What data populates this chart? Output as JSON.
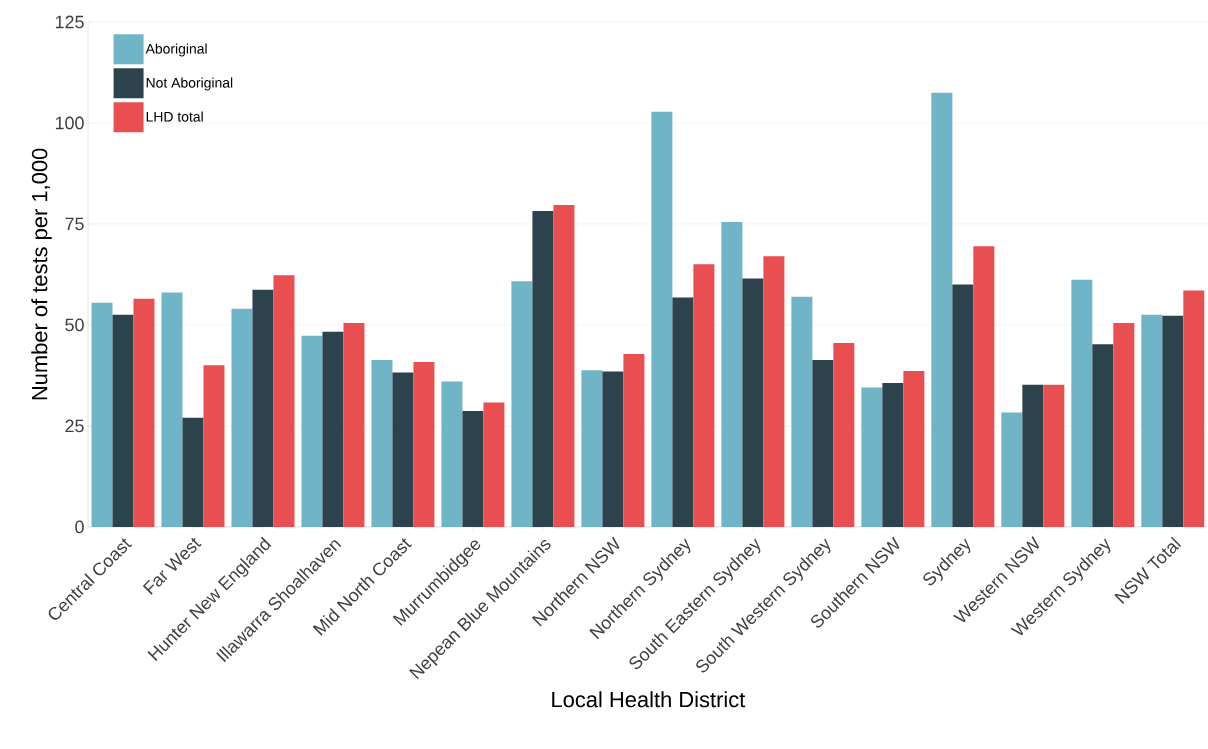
{
  "chart_data": {
    "type": "bar",
    "xlabel": "Local Health District",
    "ylabel": "Number of tests per 1,000",
    "categories": [
      "Central Coast",
      "Far West",
      "Hunter New England",
      "Illawarra Shoalhaven",
      "Mid North Coast",
      "Murrumbidgee",
      "Nepean Blue Mountains",
      "Northern NSW",
      "Northern Sydney",
      "South Eastern Sydney",
      "South Western Sydney",
      "Southern NSW",
      "Sydney",
      "Western NSW",
      "Western Sydney",
      "NSW Total"
    ],
    "series": [
      {
        "name": "Aboriginal",
        "color": "#70b4c7",
        "values": [
          55.5,
          58,
          54,
          47.3,
          41.3,
          36,
          60.8,
          38.8,
          102.8,
          75.5,
          57,
          34.5,
          107.5,
          28.3,
          61.2,
          52.5
        ]
      },
      {
        "name": "Not Aboriginal",
        "color": "#2c434e",
        "values": [
          52.5,
          27,
          58.7,
          48.3,
          38.2,
          28.7,
          78.2,
          38.5,
          56.8,
          61.5,
          41.3,
          35.6,
          60,
          35.2,
          45.2,
          52.3
        ]
      },
      {
        "name": "LHD total",
        "color": "#e94f50",
        "values": [
          56.5,
          40,
          62.3,
          50.5,
          40.8,
          30.8,
          79.7,
          42.8,
          65,
          67,
          45.5,
          38.6,
          69.5,
          35.2,
          50.5,
          58.5
        ]
      }
    ],
    "ylim": [
      0,
      125
    ],
    "yticks": [
      0,
      25,
      50,
      75,
      100,
      125
    ],
    "grid": "y",
    "legend": "top left"
  }
}
